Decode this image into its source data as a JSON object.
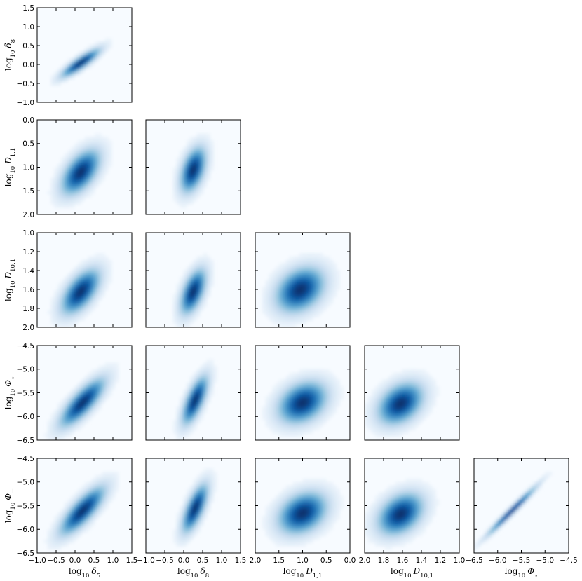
{
  "chart_data": {
    "type": "heatmap",
    "description_layout": "corner",
    "colormap": [
      "#f7fbff",
      "#deebf7",
      "#c6dbef",
      "#9ecae1",
      "#6baed6",
      "#4292c6",
      "#2171b5",
      "#08519c",
      "#08306b"
    ],
    "variables": [
      {
        "key": "d5",
        "label": "log10 δ5",
        "base": "log",
        "sub": "10",
        "sym": "δ",
        "symsub": "5",
        "range": [
          -1.0,
          1.5
        ],
        "inverted": false,
        "ticks": [
          -1.0,
          -0.5,
          0.0,
          0.5,
          1.0,
          1.5
        ],
        "ticklabels": [
          "−1.0",
          "−0.5",
          "0.0",
          "0.5",
          "1.0",
          "1.5"
        ]
      },
      {
        "key": "d8",
        "label": "log10 δ8",
        "base": "log",
        "sub": "10",
        "sym": "δ",
        "symsub": "8",
        "range": [
          -1.0,
          1.5
        ],
        "inverted": false,
        "ticks": [
          -1.0,
          -0.5,
          0.0,
          0.5,
          1.0,
          1.5
        ],
        "ticklabels": [
          "−1.0",
          "−0.5",
          "0.0",
          "0.5",
          "1.0",
          "1.5"
        ]
      },
      {
        "key": "D11",
        "label": "log10 D1,1",
        "base": "log",
        "sub": "10",
        "sym": "D",
        "symsub": "1,1",
        "range": [
          0.0,
          2.0
        ],
        "inverted": true,
        "ticks": [
          0.0,
          0.5,
          1.0,
          1.5,
          2.0
        ],
        "ticklabels": [
          "0.0",
          "0.5",
          "1.0",
          "1.5",
          "2.0"
        ]
      },
      {
        "key": "D101",
        "label": "log10 D10,1",
        "base": "log",
        "sub": "10",
        "sym": "D",
        "symsub": "10,1",
        "range": [
          1.0,
          2.0
        ],
        "inverted": true,
        "ticks": [
          1.0,
          1.2,
          1.4,
          1.6,
          1.8,
          2.0
        ],
        "ticklabels": [
          "1.0",
          "1.2",
          "1.4",
          "1.6",
          "1.8",
          "2.0"
        ]
      },
      {
        "key": "Pst",
        "label": "log10 Φ⋆",
        "base": "log",
        "sub": "10",
        "sym": "Φ",
        "symsub": "⋆",
        "range": [
          -6.5,
          -4.5
        ],
        "inverted": false,
        "ticks": [
          -6.5,
          -6.0,
          -5.5,
          -5.0,
          -4.5
        ],
        "ticklabels": [
          "−6.5",
          "−6.0",
          "−5.5",
          "−5.0",
          "−4.5"
        ]
      },
      {
        "key": "Ppl",
        "label": "log10 Φ+",
        "base": "log",
        "sub": "10",
        "sym": "Φ",
        "symsub": "+",
        "range": [
          -6.5,
          -4.5
        ],
        "inverted": false,
        "ticks": [
          -6.5,
          -6.0,
          -5.5,
          -5.0,
          -4.5
        ],
        "ticklabels": [
          "−6.5",
          "−6.0",
          "−5.5",
          "−5.0",
          "−4.5"
        ]
      }
    ],
    "row_vars": [
      "d8",
      "D11",
      "D101",
      "Pst",
      "Ppl"
    ],
    "col_vars": [
      "d5",
      "d8",
      "D11",
      "D101",
      "Pst"
    ],
    "x_axis_labels_bottom": [
      "log10 δ5",
      "log10 δ8",
      "log10 D1,1",
      "log10 D10,1",
      "log10 Φ⋆"
    ],
    "y_axis_labels_left": [
      "log10 δ8",
      "log10 D1,1",
      "log10 D10,1",
      "log10 Φ⋆",
      "log10 Φ+"
    ],
    "panels": [
      {
        "row": 0,
        "col": 0,
        "center": [
          0.15,
          0.05
        ],
        "sx": 0.3,
        "sy": 0.22,
        "rho": 0.88
      },
      {
        "row": 1,
        "col": 0,
        "center": [
          0.15,
          1.1
        ],
        "sx": 0.3,
        "sy": 0.28,
        "rho": -0.55
      },
      {
        "row": 1,
        "col": 1,
        "center": [
          0.25,
          1.05
        ],
        "sx": 0.2,
        "sy": 0.28,
        "rho": -0.45
      },
      {
        "row": 2,
        "col": 0,
        "center": [
          0.15,
          1.62
        ],
        "sx": 0.3,
        "sy": 0.14,
        "rho": -0.6
      },
      {
        "row": 2,
        "col": 1,
        "center": [
          0.25,
          1.62
        ],
        "sx": 0.2,
        "sy": 0.14,
        "rho": -0.55
      },
      {
        "row": 2,
        "col": 2,
        "center": [
          1.05,
          1.6
        ],
        "sx": 0.3,
        "sy": 0.14,
        "rho": 0.3
      },
      {
        "row": 3,
        "col": 0,
        "center": [
          0.2,
          -5.7
        ],
        "sx": 0.35,
        "sy": 0.3,
        "rho": 0.8
      },
      {
        "row": 3,
        "col": 1,
        "center": [
          0.3,
          -5.65
        ],
        "sx": 0.2,
        "sy": 0.3,
        "rho": 0.7
      },
      {
        "row": 3,
        "col": 2,
        "center": [
          1.0,
          -5.7
        ],
        "sx": 0.3,
        "sy": 0.26,
        "rho": -0.3
      },
      {
        "row": 3,
        "col": 3,
        "center": [
          1.62,
          -5.72
        ],
        "sx": 0.14,
        "sy": 0.26,
        "rho": -0.35
      },
      {
        "row": 4,
        "col": 0,
        "center": [
          0.2,
          -5.6
        ],
        "sx": 0.35,
        "sy": 0.3,
        "rho": 0.8
      },
      {
        "row": 4,
        "col": 1,
        "center": [
          0.3,
          -5.55
        ],
        "sx": 0.2,
        "sy": 0.3,
        "rho": 0.7
      },
      {
        "row": 4,
        "col": 2,
        "center": [
          1.0,
          -5.65
        ],
        "sx": 0.3,
        "sy": 0.26,
        "rho": -0.3
      },
      {
        "row": 4,
        "col": 3,
        "center": [
          1.62,
          -5.67
        ],
        "sx": 0.14,
        "sy": 0.26,
        "rho": -0.35
      },
      {
        "row": 4,
        "col": 4,
        "center": [
          -5.7,
          -5.6
        ],
        "sx": 0.3,
        "sy": 0.3,
        "rho": 0.985
      }
    ]
  }
}
